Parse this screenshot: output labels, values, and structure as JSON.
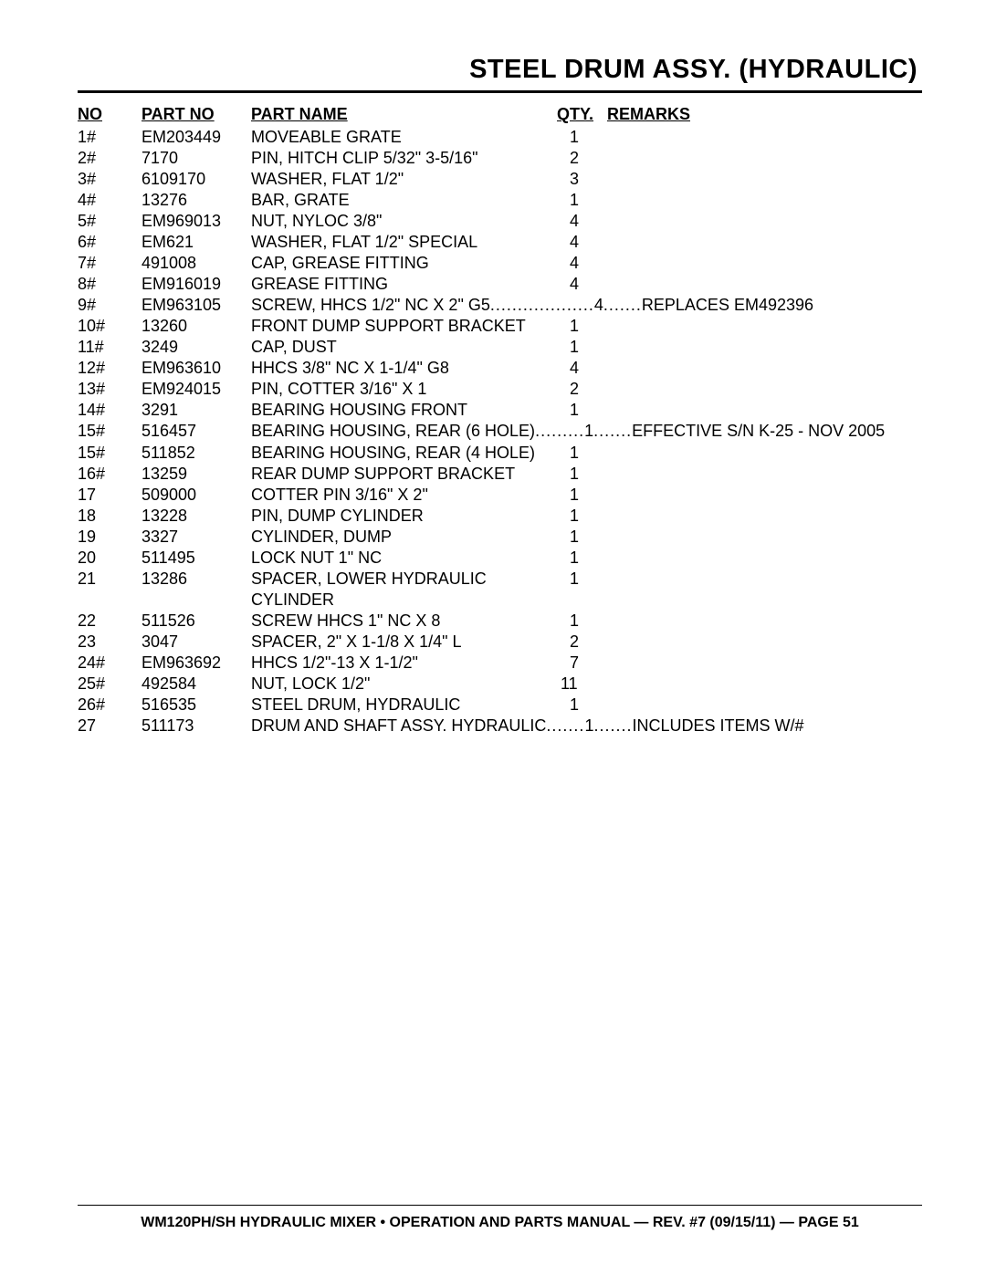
{
  "page": {
    "title": "STEEL DRUM ASSY. (HYDRAULIC)",
    "footer": "WM120PH/SH HYDRAULIC MIXER • OPERATION AND PARTS MANUAL — REV. #7 (09/15/11) — PAGE 51"
  },
  "headers": {
    "no": "NO",
    "partno": "PART NO",
    "partname": "PART NAME",
    "qty": "QTY.",
    "remarks": "REMARKS"
  },
  "rows": [
    {
      "no": "1#",
      "partno": "EM203449",
      "partname": "MOVEABLE GRATE",
      "qty": "1",
      "remarks": ""
    },
    {
      "no": "2#",
      "partno": "7170",
      "partname": "PIN, HITCH CLIP 5/32\" 3-5/16\"",
      "qty": "2",
      "remarks": ""
    },
    {
      "no": "3#",
      "partno": "6109170",
      "partname": "WASHER, FLAT 1/2\"",
      "qty": "3",
      "remarks": ""
    },
    {
      "no": "4#",
      "partno": "13276",
      "partname": "BAR, GRATE",
      "qty": "1",
      "remarks": ""
    },
    {
      "no": "5#",
      "partno": "EM969013",
      "partname": "NUT, NYLOC 3/8\"",
      "qty": "4",
      "remarks": ""
    },
    {
      "no": "6#",
      "partno": "EM621",
      "partname": "WASHER, FLAT 1/2\" SPECIAL",
      "qty": "4",
      "remarks": ""
    },
    {
      "no": "7#",
      "partno": "491008",
      "partname": "CAP, GREASE FITTING",
      "qty": "4",
      "remarks": ""
    },
    {
      "no": "8#",
      "partno": "EM916019",
      "partname": "GREASE FITTING",
      "qty": "4",
      "remarks": ""
    },
    {
      "no": "9#",
      "partno": "EM963105",
      "partname": "SCREW, HHCS 1/2\" NC X 2\" G5",
      "qty": "4",
      "remarks": "REPLACES EM492396",
      "dotted": true,
      "dots1": " ................... ",
      "dots2": " ....... "
    },
    {
      "no": "10#",
      "partno": "13260",
      "partname": "FRONT DUMP SUPPORT BRACKET",
      "qty": "1",
      "remarks": ""
    },
    {
      "no": "11#",
      "partno": "3249",
      "partname": "CAP, DUST",
      "qty": "1",
      "remarks": ""
    },
    {
      "no": "12#",
      "partno": "EM963610",
      "partname": "HHCS 3/8\" NC X 1-1/4\" G8",
      "qty": "4",
      "remarks": ""
    },
    {
      "no": "13#",
      "partno": "EM924015",
      "partname": "PIN, COTTER 3/16\" X 1",
      "qty": "2",
      "remarks": ""
    },
    {
      "no": "14#",
      "partno": "3291",
      "partname": "BEARING HOUSING FRONT",
      "qty": "1",
      "remarks": ""
    },
    {
      "no": "15#",
      "partno": "516457",
      "partname": "BEARING HOUSING, REAR (6 HOLE)",
      "qty": "1",
      "remarks": "EFFECTIVE S/N K-25 - NOV 2005",
      "dotted": true,
      "dots1": " ......... ",
      "dots2": " ....... "
    },
    {
      "no": "15#",
      "partno": "511852",
      "partname": "BEARING HOUSING, REAR (4 HOLE)",
      "qty": "1",
      "remarks": ""
    },
    {
      "no": "16#",
      "partno": "13259",
      "partname": "REAR DUMP SUPPORT BRACKET",
      "qty": "1",
      "remarks": ""
    },
    {
      "no": "17",
      "partno": "509000",
      "partname": "COTTER PIN 3/16\" X 2\"",
      "qty": "1",
      "remarks": ""
    },
    {
      "no": "18",
      "partno": "13228",
      "partname": "PIN, DUMP CYLINDER",
      "qty": "1",
      "remarks": ""
    },
    {
      "no": "19",
      "partno": "3327",
      "partname": "CYLINDER, DUMP",
      "qty": "1",
      "remarks": ""
    },
    {
      "no": "20",
      "partno": "511495",
      "partname": "LOCK NUT 1\" NC",
      "qty": "1",
      "remarks": ""
    },
    {
      "no": "21",
      "partno": "13286",
      "partname": "SPACER, LOWER HYDRAULIC CYLINDER",
      "qty": "1",
      "remarks": ""
    },
    {
      "no": "22",
      "partno": "511526",
      "partname": "SCREW HHCS 1\" NC X 8",
      "qty": "1",
      "remarks": ""
    },
    {
      "no": "23",
      "partno": "3047",
      "partname": "SPACER, 2\" X 1-1/8 X 1/4\" L",
      "qty": "2",
      "remarks": ""
    },
    {
      "no": "24#",
      "partno": "EM963692",
      "partname": "HHCS 1/2\"-13 X 1-1/2\"",
      "qty": "7",
      "remarks": ""
    },
    {
      "no": "25#",
      "partno": "492584",
      "partname": "NUT, LOCK 1/2\"",
      "qty": "11",
      "remarks": ""
    },
    {
      "no": "26#",
      "partno": "516535",
      "partname": "STEEL DRUM, HYDRAULIC",
      "qty": "1",
      "remarks": ""
    },
    {
      "no": "27",
      "partno": "511173",
      "partname": "DRUM AND SHAFT ASSY. HYDRAULIC",
      "qty": "1",
      "remarks": "INCLUDES ITEMS W/#",
      "dotted": true,
      "dots1": " ....... ",
      "dots2": " ....... "
    }
  ]
}
